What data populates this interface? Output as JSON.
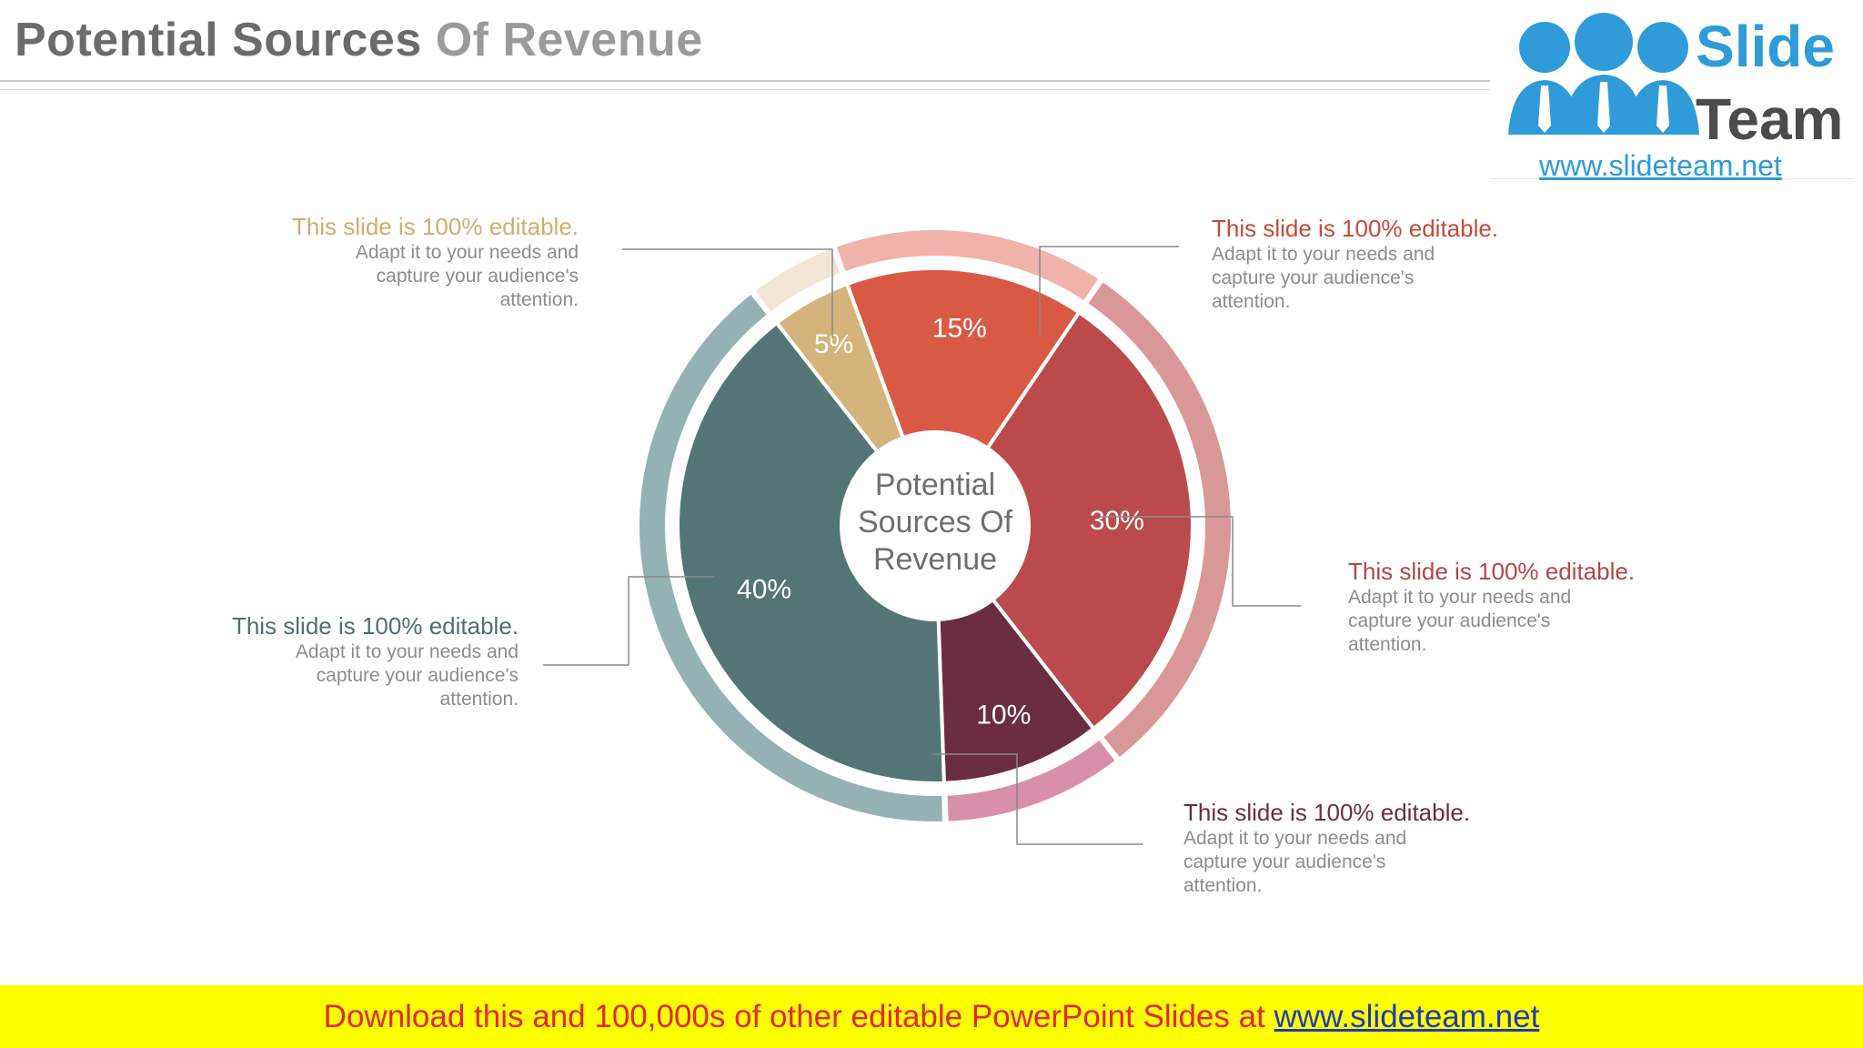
{
  "header": {
    "title_part1": "Potential Sources ",
    "title_part2": "Of Revenue"
  },
  "logo": {
    "word1": "Slide",
    "word2": "Team",
    "url": "www.slideteam.net"
  },
  "chart_data": {
    "type": "pie",
    "center_label": [
      "Potential",
      "Sources Of",
      "Revenue"
    ],
    "slices": [
      {
        "value": 5,
        "label": "5%",
        "color": "#d5b47c",
        "ring_color": "#f1e6d6"
      },
      {
        "value": 15,
        "label": "15%",
        "color": "#d95a44",
        "ring_color": "#efb3ab"
      },
      {
        "value": 30,
        "label": "30%",
        "color": "#bb4a4c",
        "ring_color": "#d99898"
      },
      {
        "value": 10,
        "label": "10%",
        "color": "#6b2d42",
        "ring_color": "#d890aa"
      },
      {
        "value": 40,
        "label": "40%",
        "color": "#547575",
        "ring_color": "#94b2b3"
      }
    ]
  },
  "callouts": [
    {
      "head": "This slide is 100% editable.",
      "body": "Adapt it to your needs and\ncapture your audience's\nattention.",
      "color": "#d4aa6e"
    },
    {
      "head": "This slide is 100% editable.",
      "body": "Adapt it to your needs and\ncapture your audience's\nattention.",
      "color": "#c54a3c"
    },
    {
      "head": "This slide is 100% editable.",
      "body": "Adapt it to your needs and\ncapture your audience's\nattention.",
      "color": "#b54448"
    },
    {
      "head": "This slide is 100% editable.",
      "body": "Adapt it to your needs and\ncapture your audience's\nattention.",
      "color": "#6b2d42"
    },
    {
      "head": "This slide is 100% editable.",
      "body": "Adapt it to your needs and\ncapture your audience's\nattention.",
      "color": "#4f6f6f"
    }
  ],
  "footer": {
    "text": "Download this and 100,000s of other editable PowerPoint Slides at ",
    "link": "www.slideteam.net"
  }
}
